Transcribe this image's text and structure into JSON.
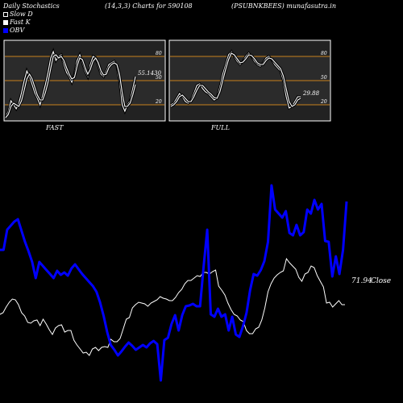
{
  "header": {
    "title": "Daily Stochastics",
    "params": "(14,3,3) Charts for 590108",
    "symbol": "(PSUBNKBEES) munafasutra.in"
  },
  "legend": [
    {
      "label": "Slow  D",
      "swatch": "open",
      "color": "#ffffff"
    },
    {
      "label": "Fast K",
      "swatch": "filled",
      "color": "#ffffff"
    },
    {
      "label": "OBV",
      "swatch": "filled",
      "color": "#0000ff"
    }
  ],
  "chart_data": [
    {
      "type": "line",
      "panel": "FAST",
      "label": "FAST",
      "value_label": "55.1430",
      "ylim": [
        0,
        100
      ],
      "y_ticks": [
        20,
        50,
        80
      ],
      "y_tick_labels": [
        "20",
        "50",
        "80"
      ],
      "series": [
        {
          "name": "Fast K",
          "color": "#ffffff",
          "values": [
            5,
            12,
            25,
            20,
            15,
            22,
            35,
            50,
            62,
            55,
            45,
            35,
            28,
            20,
            32,
            45,
            60,
            78,
            86,
            75,
            80,
            82,
            70,
            60,
            55,
            48,
            58,
            75,
            82,
            72,
            62,
            55,
            70,
            80,
            78,
            68,
            58,
            55,
            62,
            70,
            72,
            74,
            68,
            50,
            20,
            12,
            20,
            25,
            40,
            55
          ]
        },
        {
          "name": "Slow D",
          "color": "#ffffff",
          "values": [
            4,
            8,
            18,
            22,
            20,
            18,
            25,
            38,
            52,
            58,
            52,
            42,
            32,
            26,
            26,
            35,
            48,
            65,
            80,
            82,
            78,
            80,
            75,
            66,
            58,
            52,
            54,
            68,
            78,
            76,
            66,
            58,
            64,
            74,
            78,
            72,
            62,
            57,
            58,
            66,
            70,
            72,
            70,
            58,
            35,
            18,
            18,
            22,
            32,
            45
          ]
        }
      ]
    },
    {
      "type": "line",
      "panel": "FULL",
      "label": "FULL",
      "value_label": "29.88",
      "ylim": [
        0,
        100
      ],
      "y_ticks": [
        20,
        50,
        80
      ],
      "y_tick_labels": [
        "20",
        "50",
        "80"
      ],
      "series": [
        {
          "name": "Full K",
          "color": "#ffffff",
          "values": [
            20,
            22,
            28,
            34,
            30,
            24,
            22,
            26,
            34,
            44,
            46,
            40,
            36,
            34,
            30,
            26,
            28,
            42,
            58,
            70,
            82,
            86,
            80,
            74,
            70,
            74,
            80,
            84,
            80,
            74,
            70,
            68,
            72,
            78,
            80,
            76,
            70,
            66,
            62,
            50,
            30,
            16,
            18,
            24,
            30,
            30
          ]
        },
        {
          "name": "Full D",
          "color": "#ffffff",
          "values": [
            18,
            20,
            24,
            30,
            32,
            28,
            24,
            24,
            30,
            38,
            44,
            44,
            40,
            36,
            33,
            29,
            28,
            36,
            50,
            64,
            76,
            84,
            82,
            77,
            72,
            73,
            77,
            82,
            81,
            77,
            72,
            70,
            70,
            75,
            78,
            77,
            73,
            69,
            65,
            56,
            40,
            24,
            18,
            20,
            26,
            28
          ]
        }
      ]
    },
    {
      "type": "line",
      "panel": "OBV",
      "label": "OBV",
      "value_label": "71.94",
      "value_suffix": "Close",
      "series": [
        {
          "name": "OBV",
          "color": "#0000ff",
          "values": [
            310,
            310,
            285,
            280,
            275,
            272,
            286,
            300,
            312,
            325,
            345,
            325,
            330,
            335,
            340,
            345,
            336,
            341,
            338,
            342,
            333,
            328,
            334,
            340,
            345,
            350,
            355,
            362,
            375,
            392,
            412,
            428,
            434,
            441,
            436,
            430,
            425,
            429,
            434,
            431,
            428,
            431,
            426,
            423,
            427,
            472,
            422,
            419,
            402,
            391,
            410,
            391,
            380,
            379,
            377,
            380,
            380,
            330,
            285,
            390,
            393,
            383,
            393,
            390,
            410,
            393,
            415,
            418,
            405,
            388,
            360,
            340,
            342,
            335,
            324,
            300,
            230,
            260,
            265,
            270,
            262,
            289,
            292,
            279,
            292,
            288,
            260,
            265,
            248,
            260,
            253,
            299,
            300,
            343,
            318,
            340,
            310,
            250
          ]
        },
        {
          "name": "Close",
          "color": "#ffffff",
          "values": [
            390,
            388,
            381,
            375,
            371,
            372,
            378,
            388,
            392,
            400,
            401,
            398,
            397,
            404,
            396,
            402,
            409,
            415,
            407,
            404,
            403,
            412,
            410,
            410,
            422,
            428,
            433,
            438,
            437,
            441,
            433,
            431,
            435,
            431,
            430,
            431,
            421,
            424,
            424,
            420,
            408,
            396,
            394,
            382,
            378,
            375,
            376,
            377,
            380,
            376,
            374,
            372,
            368,
            370,
            371,
            373,
            373,
            369,
            363,
            359,
            352,
            348,
            348,
            345,
            342,
            343,
            338,
            338,
            340,
            337,
            335,
            355,
            360,
            366,
            376,
            384,
            390,
            392,
            397,
            399,
            410,
            414,
            414,
            408,
            406,
            397,
            382,
            362,
            352,
            345,
            341,
            338,
            336,
            321,
            326,
            330,
            334,
            344,
            349,
            340,
            338,
            330,
            332,
            342,
            349,
            356,
            376,
            375,
            381,
            377,
            373,
            378,
            378
          ]
        }
      ]
    }
  ]
}
